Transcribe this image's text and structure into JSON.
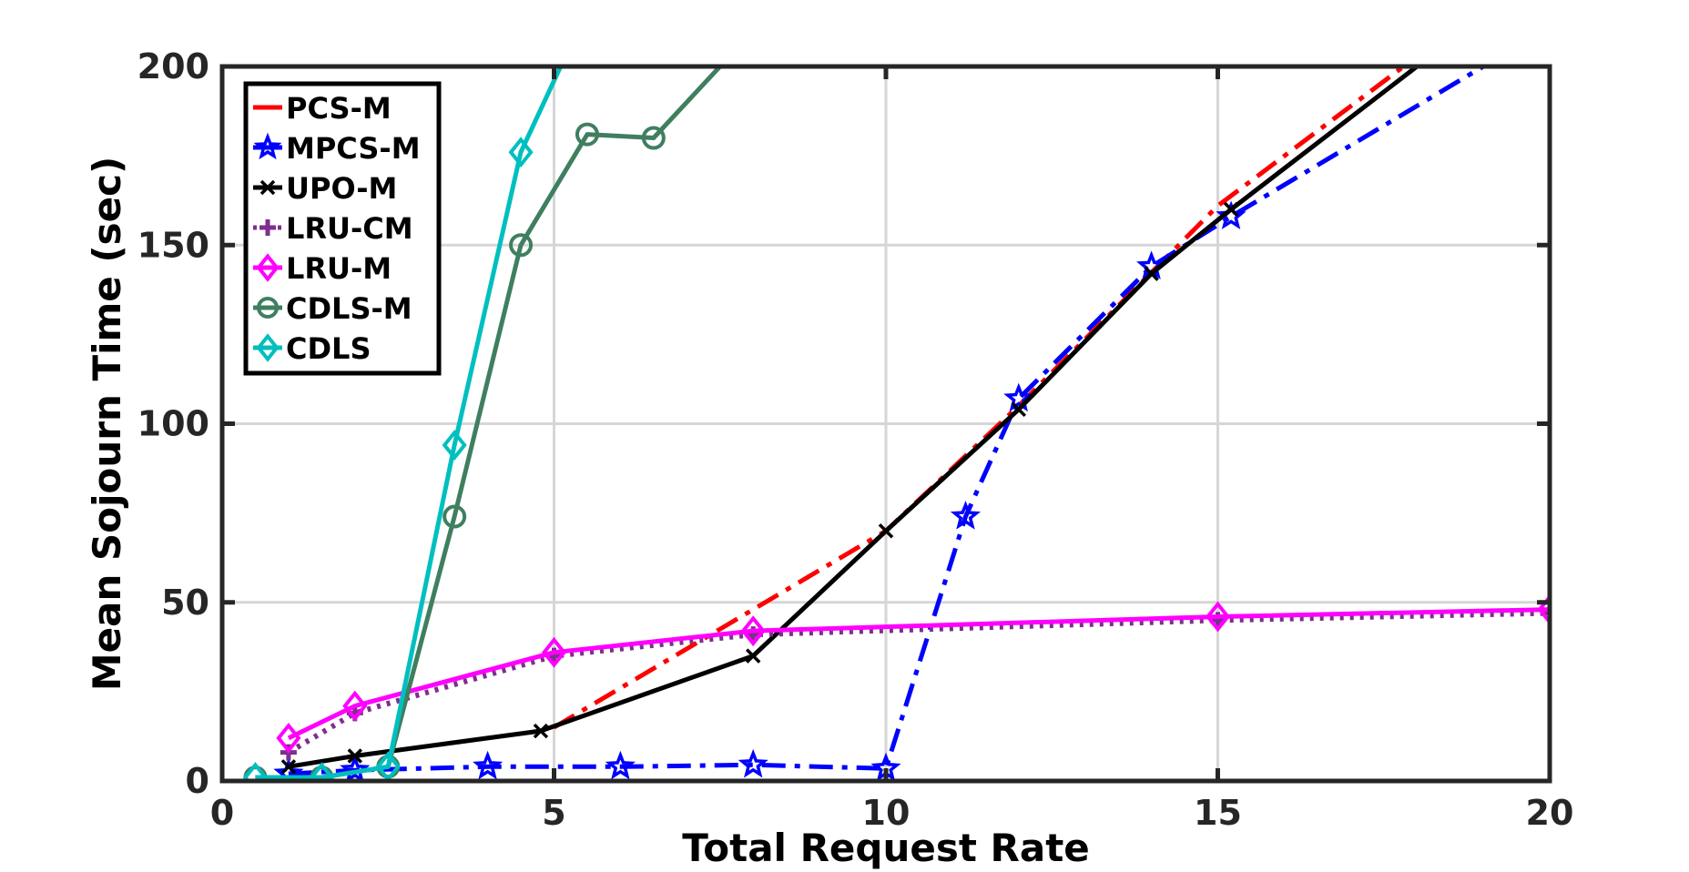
{
  "chart_data": {
    "type": "line",
    "xlabel": "Total Request Rate",
    "ylabel": "Mean Sojourn Time (sec)",
    "xlim": [
      0,
      20
    ],
    "ylim": [
      0,
      200
    ],
    "xticks": [
      0,
      5,
      10,
      15,
      20
    ],
    "yticks": [
      0,
      50,
      100,
      150,
      200
    ],
    "grid": true,
    "legend_position": "top-left",
    "series": [
      {
        "name": "PCS-M",
        "color": "#ff0000",
        "dash": "dash-dot",
        "marker": "none",
        "x": [
          5,
          8,
          10,
          12,
          15,
          17.8
        ],
        "y": [
          15,
          48,
          70,
          105,
          161,
          200
        ]
      },
      {
        "name": "MPCS-M",
        "color": "#0000ff",
        "dash": "dash-dot",
        "marker": "star",
        "x": [
          1,
          2,
          4,
          6,
          8,
          10,
          11.2,
          12,
          14,
          15.2,
          19.0
        ],
        "y": [
          2,
          3,
          4,
          4,
          4.5,
          3.5,
          74,
          107,
          144,
          158,
          200
        ]
      },
      {
        "name": "UPO-M",
        "color": "#000000",
        "dash": "solid",
        "marker": "x",
        "x": [
          1,
          2,
          4.8,
          8,
          10,
          12,
          14,
          15.2,
          18
        ],
        "y": [
          4,
          7,
          14,
          35,
          70,
          104,
          142,
          160,
          200
        ]
      },
      {
        "name": "LRU-CM",
        "color": "#7e2f8e",
        "dash": "dotted",
        "marker": "plus",
        "x": [
          1,
          2,
          5,
          8,
          15,
          20
        ],
        "y": [
          8,
          19,
          35,
          41,
          45,
          47
        ]
      },
      {
        "name": "LRU-M",
        "color": "#ff00ff",
        "dash": "solid",
        "marker": "diamond",
        "x": [
          1,
          2,
          5,
          8,
          15,
          20
        ],
        "y": [
          12,
          21,
          36,
          42,
          46,
          48
        ]
      },
      {
        "name": "CDLS-M",
        "color": "#3f7f5f",
        "dash": "solid",
        "marker": "circle",
        "x": [
          0.5,
          1.5,
          2.5,
          3.5,
          4.5,
          5.5,
          6.5,
          7.5
        ],
        "y": [
          1,
          1,
          4,
          74,
          150,
          181,
          180,
          200
        ]
      },
      {
        "name": "CDLS",
        "color": "#00bfbf",
        "dash": "solid",
        "marker": "diamond",
        "x": [
          0.5,
          1.5,
          2.5,
          3.5,
          4.5,
          5.1
        ],
        "y": [
          1,
          1,
          4,
          94,
          176,
          200
        ]
      }
    ]
  }
}
